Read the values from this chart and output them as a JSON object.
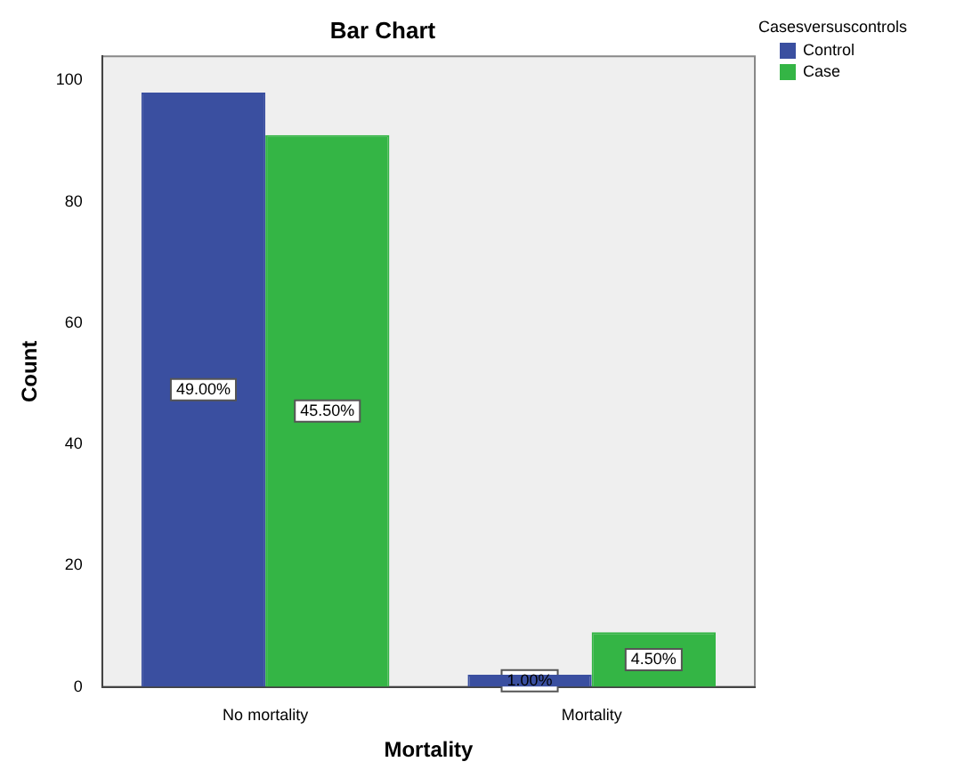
{
  "chart_data": {
    "type": "bar",
    "title": "Bar Chart",
    "xlabel": "Mortality",
    "ylabel": "Count",
    "legend_title": "Casesversuscontrols",
    "categories": [
      "No mortality",
      "Mortality"
    ],
    "series": [
      {
        "name": "Control",
        "color": "#3a4fa0",
        "values": [
          98,
          2
        ]
      },
      {
        "name": "Case",
        "color": "#34b545",
        "values": [
          91,
          9
        ]
      }
    ],
    "annotations": [
      {
        "text": "49.00%",
        "x": "No mortality",
        "y": 49
      },
      {
        "text": "45.50%",
        "x": "No mortality",
        "y": 45.5
      },
      {
        "text": "1.00%",
        "x": "Mortality",
        "y": 1
      },
      {
        "text": "4.50%",
        "x": "Mortality",
        "y": 4.5
      }
    ],
    "ylim": [
      0,
      104
    ],
    "yticks": [
      0,
      20,
      40,
      60,
      80,
      100
    ],
    "grid": false,
    "legend": "top right"
  }
}
